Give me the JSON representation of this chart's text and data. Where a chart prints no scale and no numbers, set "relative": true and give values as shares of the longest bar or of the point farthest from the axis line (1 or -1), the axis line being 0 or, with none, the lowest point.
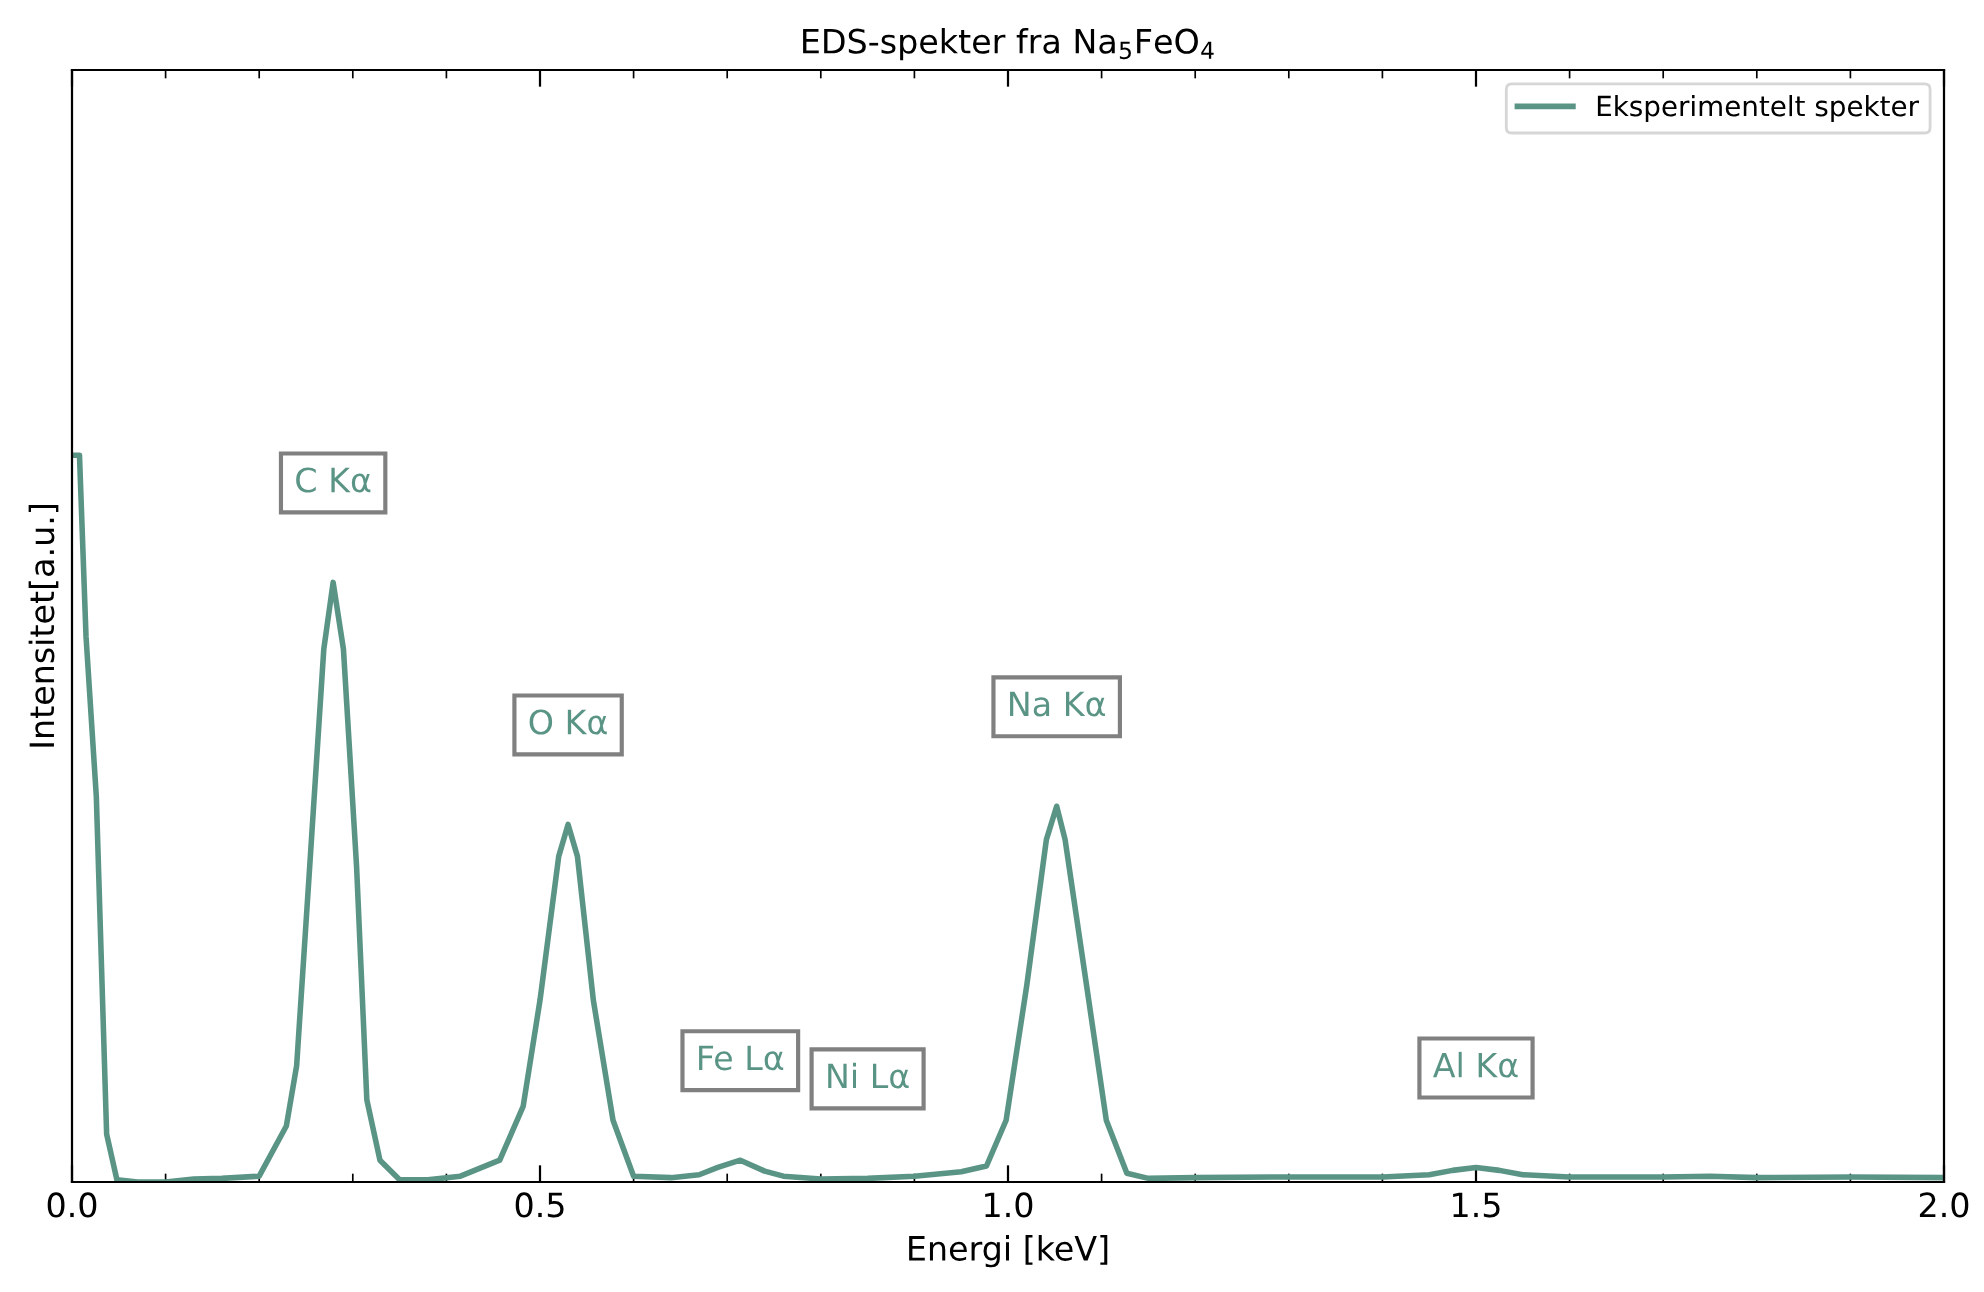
{
  "chart_data": {
    "type": "line",
    "title": "EDS-spekter fra Na$_{5}$FeO$_{4}$",
    "xlabel": "Energi [keV]",
    "ylabel": "Intensitet[a.u.]",
    "relative": true,
    "xlim": [
      0,
      2
    ],
    "xticks": [
      {
        "value": 0,
        "label": "0.0"
      },
      0.5,
      {
        "value": 1,
        "label": "1.0"
      },
      1.5,
      {
        "value": 2,
        "label": "2.0"
      }
    ],
    "legend": "top right",
    "grid": false,
    "series": [
      {
        "name": "Eksperimentelt spekter",
        "color": "#5a9485",
        "x": [
          0,
          0.008,
          0.015,
          0.026,
          0.037,
          0.048,
          0.07,
          0.1,
          0.13,
          0.16,
          0.2,
          0.229,
          0.24,
          0.254,
          0.269,
          0.279,
          0.29,
          0.304,
          0.315,
          0.329,
          0.35,
          0.38,
          0.415,
          0.457,
          0.482,
          0.5,
          0.52,
          0.53,
          0.54,
          0.557,
          0.578,
          0.6,
          0.64,
          0.67,
          0.69,
          0.714,
          0.74,
          0.76,
          0.8,
          0.85,
          0.9,
          0.95,
          0.977,
          0.998,
          1.02,
          1.041,
          1.052,
          1.061,
          1.084,
          1.105,
          1.127,
          1.15,
          1.2,
          1.3,
          1.4,
          1.45,
          1.475,
          1.5,
          1.525,
          1.55,
          1.6,
          1.7,
          1.75,
          1.8,
          1.9,
          2.0
        ],
        "values": [
          1.0,
          1.0,
          0.75,
          0.53,
          0.066,
          0.003,
          0,
          0,
          0.004,
          0.005,
          0.008,
          0.077,
          0.16,
          0.435,
          0.733,
          0.825,
          0.733,
          0.435,
          0.113,
          0.03,
          0.003,
          0.003,
          0.008,
          0.03,
          0.104,
          0.25,
          0.448,
          0.492,
          0.448,
          0.25,
          0.085,
          0.008,
          0.006,
          0.01,
          0.02,
          0.03,
          0.015,
          0.008,
          0.004,
          0.005,
          0.008,
          0.014,
          0.022,
          0.085,
          0.27,
          0.471,
          0.517,
          0.471,
          0.27,
          0.085,
          0.012,
          0.005,
          0.006,
          0.007,
          0.007,
          0.01,
          0.016,
          0.02,
          0.016,
          0.01,
          0.007,
          0.007,
          0.008,
          0.006,
          0.007,
          0.006
        ]
      }
    ],
    "annotations": [
      {
        "text": "C Kα",
        "x": 0.279,
        "y": 0.825
      },
      {
        "text": "O Kα",
        "x": 0.53,
        "y": 0.492
      },
      {
        "text": "Fe Lα",
        "x": 0.714,
        "y": 0.03
      },
      {
        "text": "Ni Lα",
        "x": 0.85,
        "y": 0.005
      },
      {
        "text": "Na Kα",
        "x": 1.052,
        "y": 0.517
      },
      {
        "text": "Al Kα",
        "x": 1.5,
        "y": 0.02
      }
    ]
  }
}
